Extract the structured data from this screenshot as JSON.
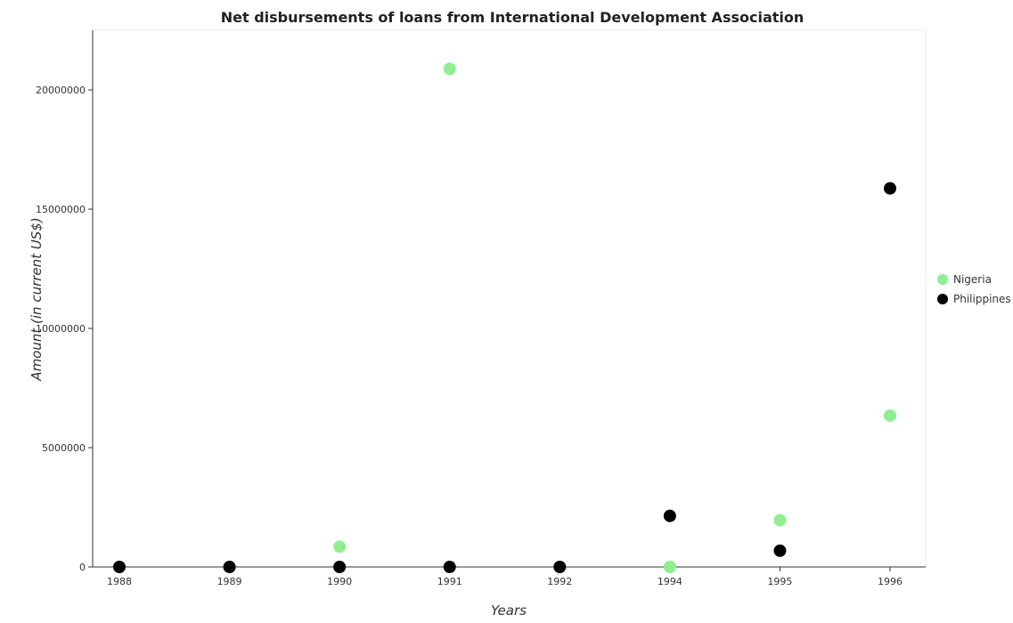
{
  "chart_data": {
    "type": "scatter",
    "title": "Net disbursements of loans from International Development Association",
    "xlabel": "Years",
    "ylabel": "Amount (in current US$)",
    "categories": [
      "1988",
      "1989",
      "1990",
      "1991",
      "1992",
      "1994",
      "1995",
      "1996"
    ],
    "ylim": [
      0,
      22500000
    ],
    "yticks": [
      0,
      5000000,
      10000000,
      15000000,
      20000000
    ],
    "ytick_labels": [
      "0",
      "5000000",
      "10000000",
      "15000000",
      "20000000"
    ],
    "grid": false,
    "legend_position": "right",
    "series": [
      {
        "name": "Nigeria",
        "color": "#90ee90",
        "values": [
          0,
          0,
          850000,
          20880000,
          0,
          0,
          1960000,
          6340000
        ]
      },
      {
        "name": "Philippines",
        "color": "#000000",
        "values": [
          0,
          0,
          0,
          0,
          0,
          2140000,
          680000,
          15870000
        ]
      }
    ]
  }
}
